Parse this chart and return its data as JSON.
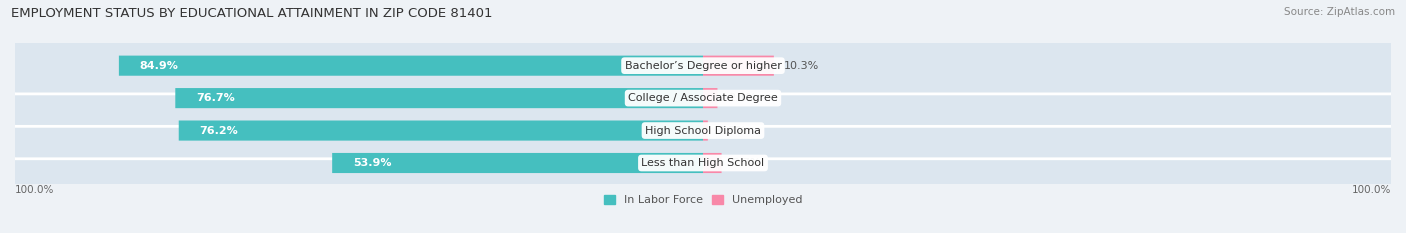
{
  "title": "EMPLOYMENT STATUS BY EDUCATIONAL ATTAINMENT IN ZIP CODE 81401",
  "source": "Source: ZipAtlas.com",
  "categories": [
    "Less than High School",
    "High School Diploma",
    "College / Associate Degree",
    "Bachelor’s Degree or higher"
  ],
  "labor_force": [
    53.9,
    76.2,
    76.7,
    84.9
  ],
  "unemployed": [
    2.7,
    0.7,
    2.1,
    10.3
  ],
  "labor_color": "#45bfbf",
  "unemployed_color": "#f888a8",
  "bg_color": "#eef2f6",
  "bar_bg_color": "#dce6ef",
  "title_fontsize": 9.5,
  "source_fontsize": 7.5,
  "label_fontsize": 8,
  "tick_fontsize": 7.5,
  "bar_height": 0.62,
  "x_left_label": "100.0%",
  "x_right_label": "100.0%"
}
